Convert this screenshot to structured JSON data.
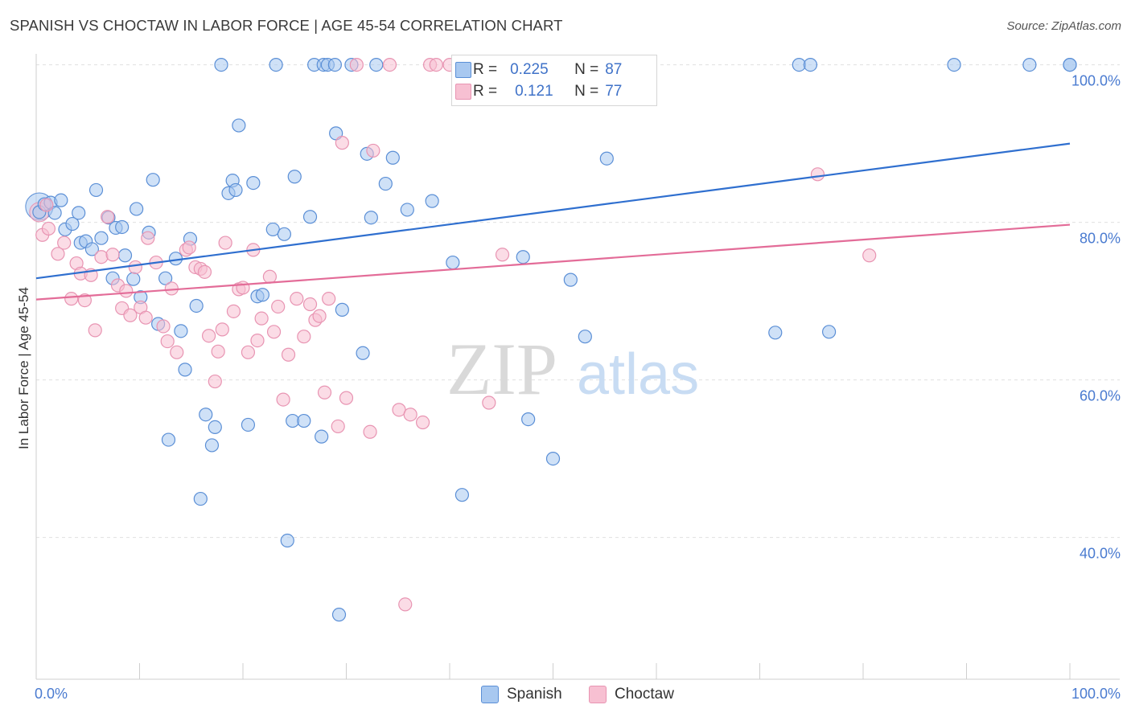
{
  "title": "SPANISH VS CHOCTAW IN LABOR FORCE | AGE 45-54 CORRELATION CHART",
  "source": "Source: ZipAtlas.com",
  "watermark": {
    "zip": "ZIP",
    "atlas": "atlas"
  },
  "legend": {
    "spanish": {
      "r_label": "R =",
      "r_value": "0.225",
      "n_label": "N =",
      "n_value": "87"
    },
    "choctaw": {
      "r_label": "R =",
      "r_value": "0.121",
      "n_label": "N =",
      "n_value": "77"
    }
  },
  "colors": {
    "spanish_fill": "#a8c8f0",
    "spanish_stroke": "#5b8fd6",
    "spanish_line": "#2f6fcf",
    "choctaw_fill": "#f7c0d2",
    "choctaw_stroke": "#e894b2",
    "choctaw_line": "#e36c98",
    "tick": "#4a7bd0",
    "grid": "#e0e0e0"
  },
  "chart_data": {
    "type": "scatter",
    "title": "SPANISH VS CHOCTAW IN LABOR FORCE | AGE 45-54 CORRELATION CHART",
    "xlabel": "",
    "ylabel": "In Labor Force | Age 45-54",
    "x_range": [
      0,
      100
    ],
    "ylim": [
      22,
      102
    ],
    "x_tick_labels": [
      "0.0%",
      "100.0%"
    ],
    "y_ticks": [
      40,
      60,
      80,
      100
    ],
    "y_tick_labels": [
      "40.0%",
      "60.0%",
      "80.0%",
      "100.0%"
    ],
    "grid": true,
    "legend_position": "top-center",
    "series": [
      {
        "name": "Spanish",
        "r": 0.225,
        "n": 87,
        "trend": {
          "x": [
            0,
            100
          ],
          "y": [
            72.9,
            90.0
          ]
        },
        "points": [
          [
            0.3,
            81.3
          ],
          [
            0.8,
            82.3
          ],
          [
            1.4,
            82.5
          ],
          [
            1.8,
            81.2
          ],
          [
            2.4,
            82.8
          ],
          [
            2.8,
            79.1
          ],
          [
            3.5,
            79.8
          ],
          [
            4.1,
            81.2
          ],
          [
            4.3,
            77.4
          ],
          [
            4.8,
            77.6
          ],
          [
            5.4,
            76.6
          ],
          [
            5.8,
            84.1
          ],
          [
            6.3,
            78.0
          ],
          [
            7.0,
            80.6
          ],
          [
            7.4,
            72.9
          ],
          [
            7.7,
            79.3
          ],
          [
            8.3,
            79.4
          ],
          [
            8.6,
            75.8
          ],
          [
            9.4,
            72.8
          ],
          [
            9.7,
            81.7
          ],
          [
            10.1,
            70.5
          ],
          [
            10.9,
            78.7
          ],
          [
            11.3,
            85.4
          ],
          [
            11.8,
            67.1
          ],
          [
            12.5,
            72.9
          ],
          [
            12.8,
            52.4
          ],
          [
            13.5,
            75.4
          ],
          [
            14.0,
            66.2
          ],
          [
            14.4,
            61.3
          ],
          [
            14.9,
            77.9
          ],
          [
            15.5,
            69.4
          ],
          [
            15.9,
            44.9
          ],
          [
            16.4,
            55.6
          ],
          [
            17.0,
            51.7
          ],
          [
            17.3,
            54.0
          ],
          [
            17.9,
            100.0
          ],
          [
            18.6,
            83.7
          ],
          [
            19.0,
            85.3
          ],
          [
            19.3,
            84.1
          ],
          [
            19.6,
            92.3
          ],
          [
            20.5,
            54.3
          ],
          [
            21.0,
            85.0
          ],
          [
            21.4,
            70.6
          ],
          [
            21.9,
            70.8
          ],
          [
            22.9,
            79.1
          ],
          [
            23.2,
            100.0
          ],
          [
            24.0,
            78.5
          ],
          [
            24.3,
            39.6
          ],
          [
            24.8,
            54.8
          ],
          [
            25.0,
            85.8
          ],
          [
            25.9,
            54.8
          ],
          [
            26.5,
            80.7
          ],
          [
            26.9,
            100.0
          ],
          [
            27.6,
            52.8
          ],
          [
            27.8,
            100.0
          ],
          [
            28.2,
            100.0
          ],
          [
            28.9,
            100.0
          ],
          [
            29.0,
            91.3
          ],
          [
            29.3,
            30.2
          ],
          [
            29.6,
            68.9
          ],
          [
            30.5,
            100.0
          ],
          [
            31.6,
            63.4
          ],
          [
            32.0,
            88.7
          ],
          [
            32.4,
            80.6
          ],
          [
            32.9,
            100.0
          ],
          [
            33.8,
            84.9
          ],
          [
            34.5,
            88.2
          ],
          [
            35.9,
            81.6
          ],
          [
            38.3,
            82.7
          ],
          [
            40.3,
            74.9
          ],
          [
            41.2,
            45.4
          ],
          [
            45.2,
            100.0
          ],
          [
            47.1,
            75.6
          ],
          [
            47.6,
            55.0
          ],
          [
            50.0,
            50.0
          ],
          [
            51.7,
            72.7
          ],
          [
            53.1,
            65.5
          ],
          [
            55.2,
            88.1
          ],
          [
            58.4,
            100.0
          ],
          [
            71.5,
            66.0
          ],
          [
            73.8,
            100.0
          ],
          [
            74.9,
            100.0
          ],
          [
            76.7,
            66.1
          ],
          [
            88.8,
            100.0
          ],
          [
            100.0,
            100.0
          ],
          [
            100.0,
            100.0
          ],
          [
            96.1,
            100.0
          ]
        ]
      },
      {
        "name": "Choctaw",
        "r": 0.121,
        "n": 77,
        "trend": {
          "x": [
            0,
            100
          ],
          "y": [
            70.2,
            79.7
          ]
        },
        "points": [
          [
            0.6,
            78.4
          ],
          [
            1.0,
            82.2
          ],
          [
            1.2,
            79.2
          ],
          [
            2.1,
            76.0
          ],
          [
            2.7,
            77.4
          ],
          [
            3.4,
            70.3
          ],
          [
            3.9,
            74.8
          ],
          [
            4.3,
            73.5
          ],
          [
            4.7,
            70.1
          ],
          [
            5.3,
            73.3
          ],
          [
            5.7,
            66.3
          ],
          [
            6.3,
            75.6
          ],
          [
            6.9,
            80.7
          ],
          [
            7.4,
            75.9
          ],
          [
            7.9,
            72.0
          ],
          [
            8.3,
            69.1
          ],
          [
            8.7,
            71.3
          ],
          [
            9.1,
            68.2
          ],
          [
            9.6,
            74.3
          ],
          [
            10.1,
            69.2
          ],
          [
            10.6,
            67.9
          ],
          [
            10.8,
            78.0
          ],
          [
            11.6,
            74.9
          ],
          [
            12.3,
            66.8
          ],
          [
            12.7,
            64.9
          ],
          [
            13.1,
            71.6
          ],
          [
            13.6,
            63.5
          ],
          [
            14.5,
            76.5
          ],
          [
            14.8,
            76.8
          ],
          [
            15.4,
            74.3
          ],
          [
            15.9,
            74.1
          ],
          [
            16.3,
            73.7
          ],
          [
            16.7,
            65.6
          ],
          [
            17.3,
            59.8
          ],
          [
            17.6,
            63.6
          ],
          [
            18.0,
            66.4
          ],
          [
            18.3,
            77.4
          ],
          [
            19.1,
            68.7
          ],
          [
            19.6,
            71.5
          ],
          [
            20.0,
            71.7
          ],
          [
            20.5,
            63.5
          ],
          [
            21.0,
            76.5
          ],
          [
            21.4,
            65.0
          ],
          [
            21.8,
            67.8
          ],
          [
            22.6,
            73.1
          ],
          [
            23.0,
            66.1
          ],
          [
            23.4,
            69.3
          ],
          [
            23.9,
            57.5
          ],
          [
            24.4,
            63.2
          ],
          [
            25.2,
            70.3
          ],
          [
            25.9,
            65.5
          ],
          [
            26.5,
            69.6
          ],
          [
            27.0,
            67.6
          ],
          [
            27.4,
            68.1
          ],
          [
            27.9,
            58.4
          ],
          [
            28.3,
            70.3
          ],
          [
            29.2,
            54.1
          ],
          [
            29.6,
            90.1
          ],
          [
            30.0,
            57.7
          ],
          [
            31.0,
            100.0
          ],
          [
            32.3,
            53.4
          ],
          [
            32.6,
            89.1
          ],
          [
            34.2,
            100.0
          ],
          [
            35.1,
            56.2
          ],
          [
            35.7,
            31.5
          ],
          [
            36.2,
            55.6
          ],
          [
            37.4,
            54.6
          ],
          [
            38.1,
            100.0
          ],
          [
            38.7,
            100.0
          ],
          [
            40.0,
            100.0
          ],
          [
            43.8,
            57.1
          ],
          [
            45.1,
            75.9
          ],
          [
            47.6,
            100.0
          ],
          [
            58.8,
            100.0
          ],
          [
            75.6,
            86.1
          ],
          [
            80.6,
            75.8
          ],
          [
            41.6,
            100.0
          ]
        ]
      }
    ]
  }
}
